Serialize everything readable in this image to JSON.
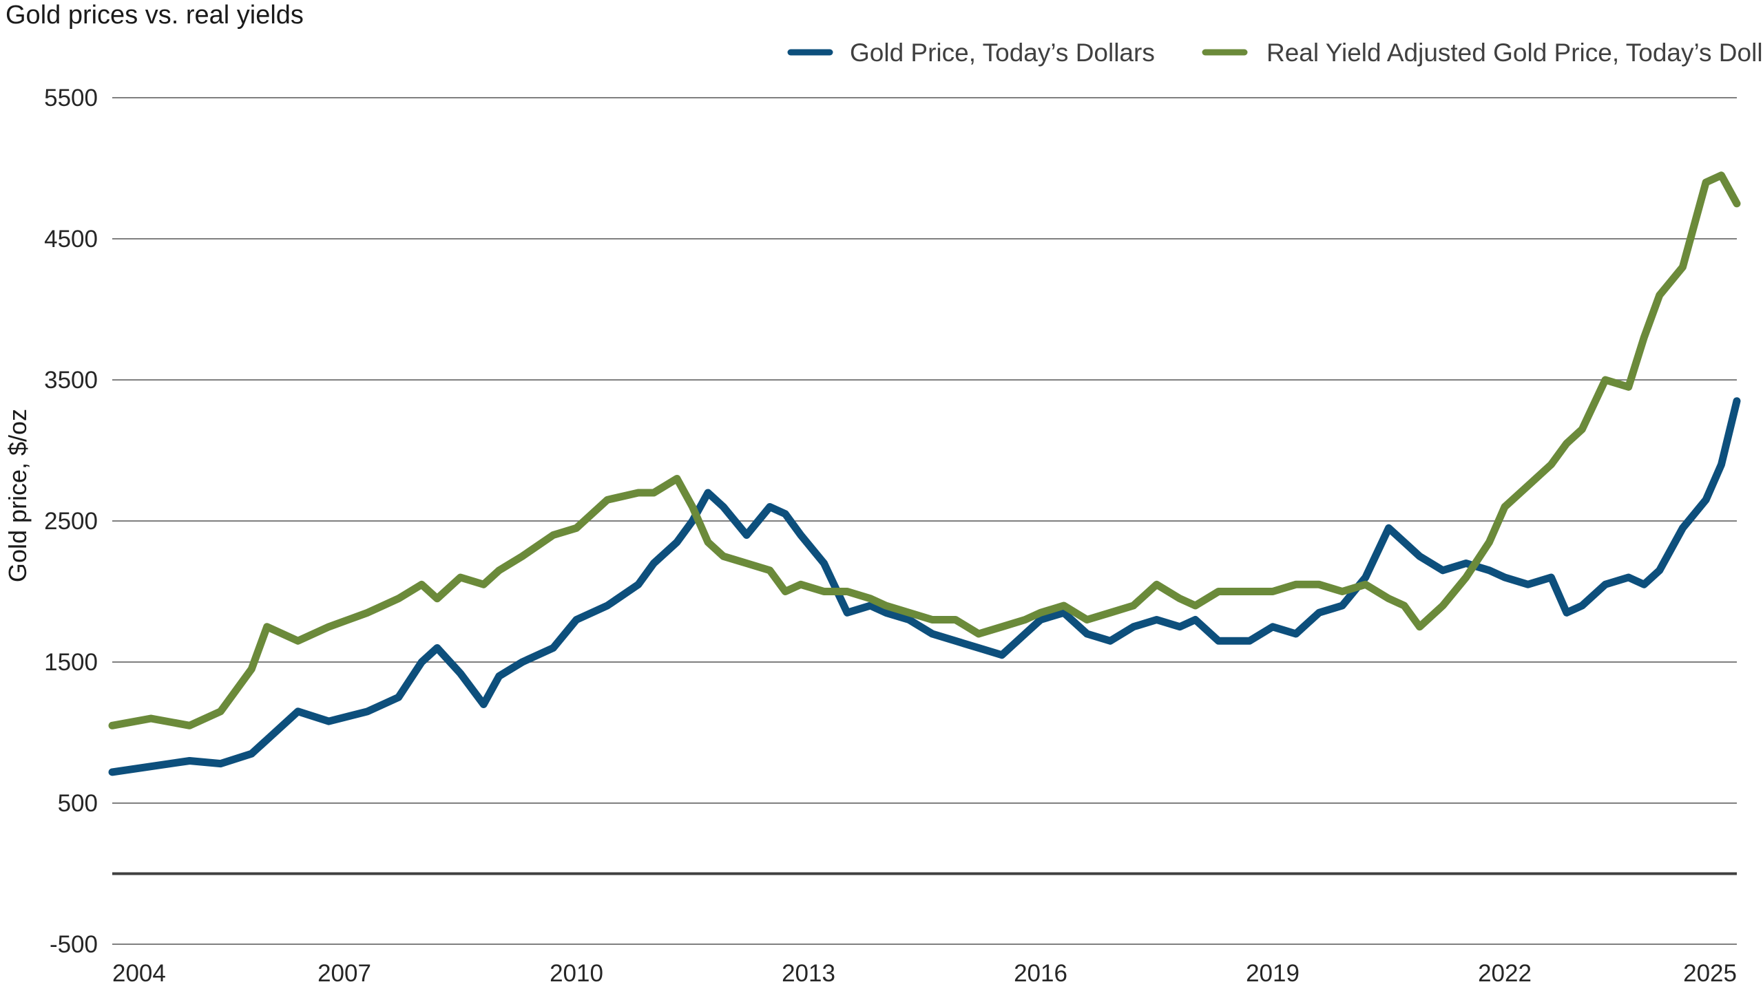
{
  "chart_data": {
    "type": "line",
    "title": "Gold prices vs. real yields",
    "xlabel": "",
    "ylabel": "Gold price, $/oz",
    "xlim": [
      2004,
      2025
    ],
    "ylim": [
      -500,
      5500
    ],
    "x_ticks": [
      2004,
      2007,
      2010,
      2013,
      2016,
      2019,
      2022,
      2025
    ],
    "y_ticks": [
      -500,
      500,
      1500,
      2500,
      3500,
      4500,
      5500
    ],
    "grid": true,
    "legend_position": "top-right",
    "series": [
      {
        "name": "Gold Price, Today’s Dollars",
        "color": "#0d4f7c",
        "x": [
          2004.0,
          2004.5,
          2005.0,
          2005.4,
          2005.8,
          2006.0,
          2006.4,
          2006.8,
          2007.3,
          2007.7,
          2008.0,
          2008.2,
          2008.5,
          2008.8,
          2009.0,
          2009.3,
          2009.7,
          2010.0,
          2010.4,
          2010.8,
          2011.0,
          2011.3,
          2011.5,
          2011.7,
          2011.9,
          2012.2,
          2012.5,
          2012.7,
          2012.9,
          2013.2,
          2013.5,
          2013.8,
          2014.0,
          2014.3,
          2014.6,
          2014.9,
          2015.2,
          2015.5,
          2015.8,
          2016.0,
          2016.3,
          2016.6,
          2016.9,
          2017.2,
          2017.5,
          2017.8,
          2018.0,
          2018.3,
          2018.7,
          2019.0,
          2019.3,
          2019.6,
          2019.9,
          2020.2,
          2020.5,
          2020.7,
          2020.9,
          2021.2,
          2021.5,
          2021.8,
          2022.0,
          2022.3,
          2022.6,
          2022.8,
          2023.0,
          2023.3,
          2023.6,
          2023.8,
          2024.0,
          2024.3,
          2024.6,
          2024.8,
          2025.0
        ],
        "values": [
          720,
          760,
          800,
          780,
          850,
          950,
          1150,
          1080,
          1150,
          1250,
          1500,
          1600,
          1420,
          1200,
          1400,
          1500,
          1600,
          1800,
          1900,
          2050,
          2200,
          2350,
          2500,
          2700,
          2600,
          2400,
          2600,
          2550,
          2400,
          2200,
          1850,
          1900,
          1850,
          1800,
          1700,
          1650,
          1600,
          1550,
          1700,
          1800,
          1850,
          1700,
          1650,
          1750,
          1800,
          1750,
          1800,
          1650,
          1650,
          1750,
          1700,
          1850,
          1900,
          2100,
          2450,
          2350,
          2250,
          2150,
          2200,
          2150,
          2100,
          2050,
          2100,
          1850,
          1900,
          2050,
          2100,
          2050,
          2150,
          2450,
          2650,
          2900,
          3350
        ]
      },
      {
        "name": "Real Yield Adjusted Gold Price, Today’s Dollars",
        "color": "#6b8a3a",
        "x": [
          2004.0,
          2004.5,
          2005.0,
          2005.4,
          2005.8,
          2006.0,
          2006.4,
          2006.8,
          2007.3,
          2007.7,
          2008.0,
          2008.2,
          2008.5,
          2008.8,
          2009.0,
          2009.3,
          2009.7,
          2010.0,
          2010.4,
          2010.8,
          2011.0,
          2011.3,
          2011.5,
          2011.7,
          2011.9,
          2012.2,
          2012.5,
          2012.7,
          2012.9,
          2013.2,
          2013.5,
          2013.8,
          2014.0,
          2014.3,
          2014.6,
          2014.9,
          2015.2,
          2015.5,
          2015.8,
          2016.0,
          2016.3,
          2016.6,
          2016.9,
          2017.2,
          2017.5,
          2017.8,
          2018.0,
          2018.3,
          2018.7,
          2019.0,
          2019.3,
          2019.6,
          2019.9,
          2020.2,
          2020.5,
          2020.7,
          2020.9,
          2021.2,
          2021.5,
          2021.8,
          2022.0,
          2022.3,
          2022.6,
          2022.8,
          2023.0,
          2023.3,
          2023.6,
          2023.8,
          2024.0,
          2024.3,
          2024.6,
          2024.8,
          2025.0
        ],
        "values": [
          1050,
          1100,
          1050,
          1150,
          1450,
          1750,
          1650,
          1750,
          1850,
          1950,
          2050,
          1950,
          2100,
          2050,
          2150,
          2250,
          2400,
          2450,
          2650,
          2700,
          2700,
          2800,
          2600,
          2350,
          2250,
          2200,
          2150,
          2000,
          2050,
          2000,
          2000,
          1950,
          1900,
          1850,
          1800,
          1800,
          1700,
          1750,
          1800,
          1850,
          1900,
          1800,
          1850,
          1900,
          2050,
          1950,
          1900,
          2000,
          2000,
          2000,
          2050,
          2050,
          2000,
          2050,
          1950,
          1900,
          1750,
          1900,
          2100,
          2350,
          2600,
          2750,
          2900,
          3050,
          3150,
          3500,
          3450,
          3800,
          4100,
          4300,
          4900,
          4950,
          4750
        ]
      }
    ]
  }
}
